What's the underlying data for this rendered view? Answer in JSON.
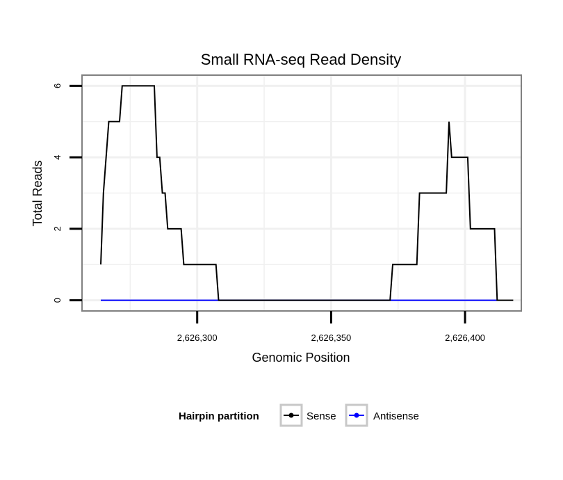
{
  "chart_data": {
    "type": "line",
    "title": "Small RNA-seq Read Density",
    "xlabel": "Genomic Position",
    "ylabel": "Total Reads",
    "xlim": [
      2626257,
      2626421
    ],
    "ylim": [
      -0.3,
      6.3
    ],
    "xticks": [
      2626300,
      2626350,
      2626400
    ],
    "xtick_labels": [
      "2,626,300",
      "2,626,350",
      "2,626,400"
    ],
    "yticks": [
      0,
      2,
      4,
      6
    ],
    "ytick_labels": [
      "0",
      "2",
      "4",
      "6"
    ],
    "grid": true,
    "legend": {
      "title": "Hairpin partition",
      "position": "bottom",
      "entries": [
        "Sense",
        "Antisense"
      ]
    },
    "series": [
      {
        "name": "Sense",
        "color": "#000000",
        "x": [
          2626264,
          2626265,
          2626267,
          2626271,
          2626272,
          2626284,
          2626285,
          2626286,
          2626287,
          2626288,
          2626289,
          2626294,
          2626295,
          2626307,
          2626308,
          2626372,
          2626373,
          2626382,
          2626383,
          2626393,
          2626394,
          2626395,
          2626401,
          2626402,
          2626411,
          2626412,
          2626418
        ],
        "y": [
          1,
          3,
          5,
          5,
          6,
          6,
          4,
          4,
          3,
          3,
          2,
          2,
          1,
          1,
          0,
          0,
          1,
          1,
          3,
          3,
          5,
          4,
          4,
          2,
          2,
          0,
          0
        ]
      },
      {
        "name": "Antisense",
        "color": "#0000ff",
        "x": [
          2626264,
          2626412
        ],
        "y": [
          0,
          0
        ]
      }
    ]
  },
  "colors": {
    "panel_border": "#808080",
    "grid": "#f0f0f0",
    "sense": "#000000",
    "antisense": "#0000ff"
  }
}
